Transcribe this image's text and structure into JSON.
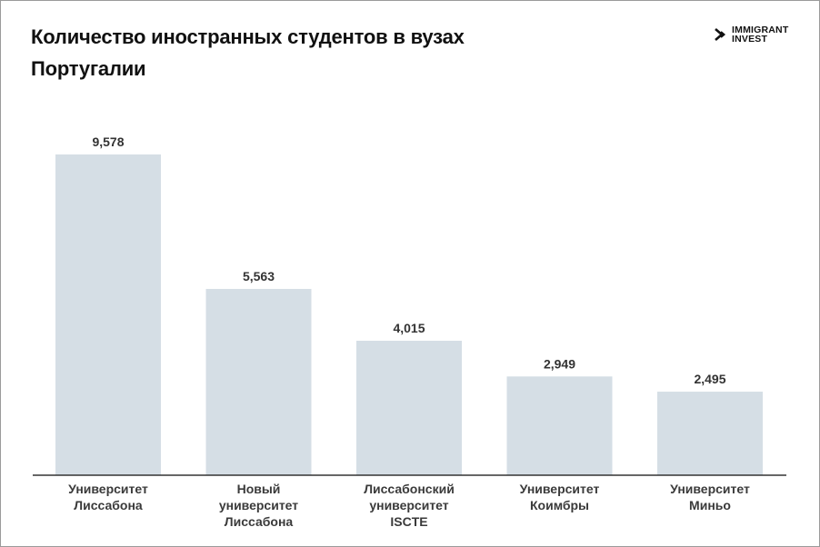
{
  "title": "Количество иностранных студентов в вузах Португалии",
  "logo": {
    "line1": "IMMIGRANT",
    "line2": "INVEST",
    "icon": "chevron-logo-icon"
  },
  "colors": {
    "bar": "#d5dee5",
    "axis": "#333333",
    "text": "#111111"
  },
  "chart_data": {
    "type": "bar",
    "title": "Количество иностранных студентов в вузах Португалии",
    "categories": [
      [
        "Университет",
        "Лиссабона"
      ],
      [
        "Новый",
        "университет",
        "Лиссабона"
      ],
      [
        "Лиссабонский",
        "университет",
        "ISCTE"
      ],
      [
        "Университет",
        "Коимбры"
      ],
      [
        "Университет",
        "Миньо"
      ]
    ],
    "values": [
      9578,
      5563,
      4015,
      2949,
      2495
    ],
    "value_labels": [
      "9,578",
      "5,563",
      "4,015",
      "2,949",
      "2,495"
    ],
    "xlabel": "",
    "ylabel": "",
    "ylim": [
      0,
      9578
    ],
    "grid": false,
    "legend": "none"
  }
}
